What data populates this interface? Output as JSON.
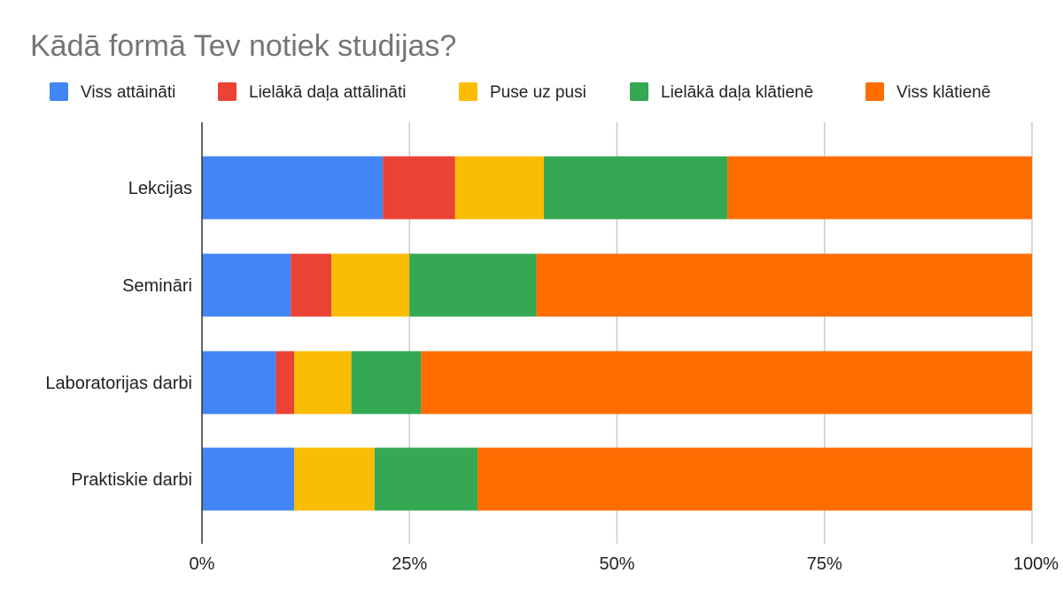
{
  "chart_data": {
    "type": "bar",
    "orientation": "horizontal",
    "stacked": "percent",
    "title": "Kādā formā Tev notiek studijas?",
    "legend_position": "top",
    "grid": true,
    "xlim": [
      0,
      100
    ],
    "x_ticks": [
      "0%",
      "25%",
      "50%",
      "75%",
      "100%"
    ],
    "categories": [
      "Lekcijas",
      "Semināri",
      "Laboratorijas darbi",
      "Praktiskie darbi"
    ],
    "series": [
      {
        "name": "Viss attāināti",
        "color": "#4285f4",
        "values": [
          21.8,
          10.7,
          8.9,
          11.1
        ]
      },
      {
        "name": "Lielākā daļa attālināti",
        "color": "#ea4335",
        "values": [
          8.7,
          4.9,
          2.2,
          0
        ]
      },
      {
        "name": "Puse uz pusi",
        "color": "#fbbc04",
        "values": [
          10.7,
          9.4,
          6.9,
          9.7
        ]
      },
      {
        "name": "Lielākā daļa klātienē",
        "color": "#34a853",
        "values": [
          22.1,
          15.3,
          8.4,
          12.4
        ]
      },
      {
        "name": "Viss klātienē",
        "color": "#ff6d01",
        "values": [
          36.7,
          59.7,
          73.6,
          66.8
        ]
      }
    ]
  }
}
